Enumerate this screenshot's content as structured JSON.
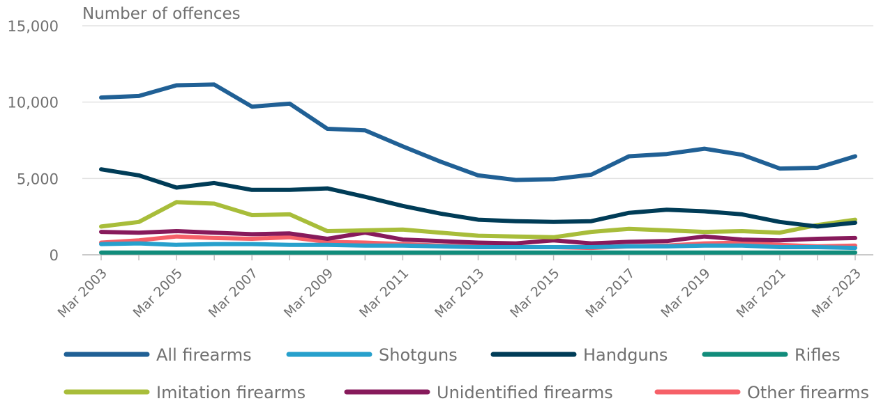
{
  "chart_data": {
    "type": "line",
    "title": "",
    "ylabel": "Number of offences",
    "xlabel": "",
    "ylim": [
      0,
      15000
    ],
    "yticks": [
      0,
      5000,
      10000,
      15000
    ],
    "ytick_labels": [
      "0",
      "5,000",
      "10,000",
      "15,000"
    ],
    "grid": true,
    "legend_position": "bottom",
    "x": [
      "Mar 2003",
      "Mar 2004",
      "Mar 2005",
      "Mar 2006",
      "Mar 2007",
      "Mar 2008",
      "Mar 2009",
      "Mar 2010",
      "Mar 2011",
      "Mar 2012",
      "Mar 2013",
      "Mar 2014",
      "Mar 2015",
      "Mar 2016",
      "Mar 2017",
      "Mar 2018",
      "Mar 2019",
      "Mar 2020",
      "Mar 2021",
      "Mar 2022",
      "Mar 2023"
    ],
    "xtick_labels": [
      "Mar 2003",
      "Mar 2005",
      "Mar 2007",
      "Mar 2009",
      "Mar 2011",
      "Mar 2013",
      "Mar 2015",
      "Mar 2017",
      "Mar 2019",
      "Mar 2021",
      "Mar 2023"
    ],
    "series": [
      {
        "name": "All firearms",
        "color": "#206095",
        "values": [
          10300,
          10400,
          11100,
          11150,
          9700,
          9900,
          8250,
          8150,
          7100,
          6100,
          5200,
          4900,
          4950,
          5250,
          6450,
          6600,
          6950,
          6550,
          5650,
          5700,
          6450
        ]
      },
      {
        "name": "Shotguns",
        "color": "#27a0cc",
        "values": [
          700,
          750,
          650,
          700,
          700,
          650,
          650,
          600,
          600,
          550,
          500,
          500,
          500,
          500,
          550,
          550,
          600,
          600,
          500,
          500,
          450
        ]
      },
      {
        "name": "Handguns",
        "color": "#003c57",
        "values": [
          5600,
          5200,
          4400,
          4700,
          4250,
          4250,
          4350,
          3800,
          3200,
          2700,
          2300,
          2200,
          2150,
          2200,
          2750,
          2950,
          2850,
          2650,
          2150,
          1850,
          2100
        ]
      },
      {
        "name": "Rifles",
        "color": "#118c7b",
        "values": [
          150,
          150,
          150,
          150,
          150,
          150,
          150,
          150,
          150,
          150,
          150,
          150,
          150,
          150,
          150,
          150,
          150,
          150,
          150,
          150,
          150
        ]
      },
      {
        "name": "Imitation firearms",
        "color": "#a8bd3a",
        "values": [
          1850,
          2150,
          3450,
          3350,
          2600,
          2650,
          1550,
          1600,
          1650,
          1450,
          1250,
          1200,
          1150,
          1500,
          1700,
          1600,
          1500,
          1550,
          1450,
          1950,
          2300
        ]
      },
      {
        "name": "Unidentified firearms",
        "color": "#871a5b",
        "values": [
          1500,
          1450,
          1550,
          1450,
          1350,
          1400,
          1050,
          1450,
          1000,
          900,
          800,
          750,
          950,
          750,
          850,
          900,
          1200,
          1000,
          950,
          1050,
          1100
        ]
      },
      {
        "name": "Other firearms",
        "color": "#f66068",
        "values": [
          800,
          950,
          1200,
          1100,
          1050,
          1150,
          850,
          800,
          700,
          600,
          550,
          500,
          500,
          450,
          550,
          600,
          750,
          800,
          650,
          550,
          600
        ]
      }
    ]
  }
}
